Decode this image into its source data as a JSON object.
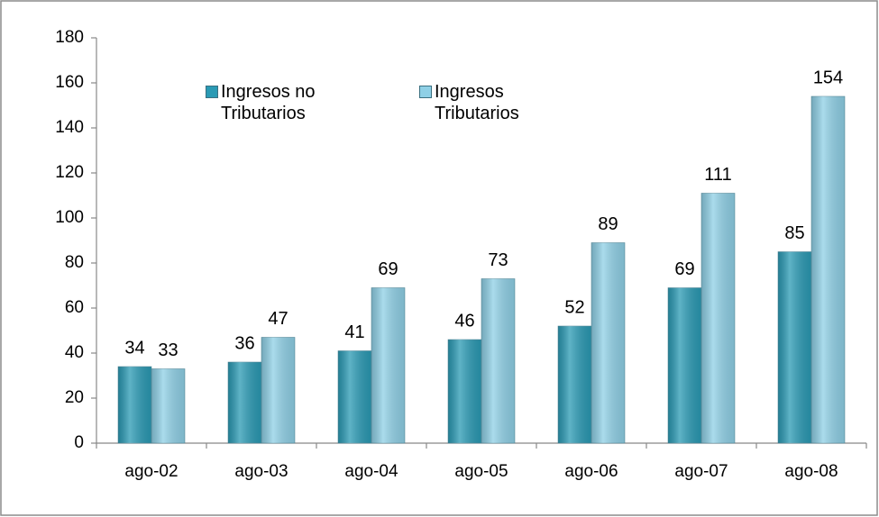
{
  "chart_data": {
    "type": "bar",
    "categories": [
      "ago-02",
      "ago-03",
      "ago-04",
      "ago-05",
      "ago-06",
      "ago-07",
      "ago-08"
    ],
    "series": [
      {
        "name": "Ingresos no Tributarios",
        "color": "#2a9ab4",
        "values": [
          34,
          36,
          41,
          46,
          52,
          69,
          85
        ]
      },
      {
        "name": "Ingresos Tributarios",
        "color": "#8fd0e6",
        "values": [
          33,
          47,
          69,
          73,
          89,
          111,
          154
        ]
      }
    ],
    "ylim": [
      0,
      180
    ],
    "yticks": [
      0,
      20,
      40,
      60,
      80,
      100,
      120,
      140,
      160,
      180
    ]
  }
}
